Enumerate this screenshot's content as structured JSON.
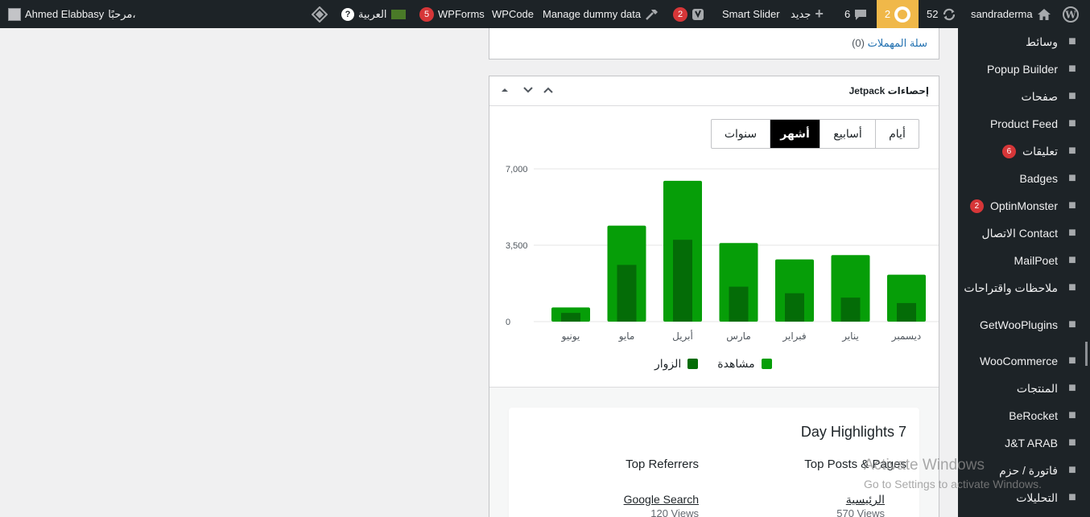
{
  "adminbar": {
    "wp_logo": "wordpress-icon",
    "site_name": "sandraderma",
    "updates_count": "52",
    "plugin_notice_count": "2",
    "comments_count": "6",
    "new_label": "جديد",
    "smart_slider": "Smart Slider",
    "yoast_count": "2",
    "manage_dummy": "Manage dummy data",
    "wpcode": "WPCode",
    "wpforms": "WPForms",
    "wpforms_count": "5",
    "language": "العربية",
    "greeting": "مرحبًا،",
    "user_name": "Ahmed Elabbasy"
  },
  "sidebar": {
    "items": [
      {
        "label": "وسائط",
        "icon": "media-icon"
      },
      {
        "label": "Popup Builder",
        "icon": "popup-icon"
      },
      {
        "label": "صفحات",
        "icon": "pages-icon"
      },
      {
        "label": "Product Feed",
        "icon": "cart-icon"
      },
      {
        "label": "تعليقات",
        "icon": "comment-icon",
        "badge": "6"
      },
      {
        "label": "Badges",
        "icon": "badge-icon"
      },
      {
        "label": "OptinMonster",
        "icon": "monster-icon",
        "badge": "2"
      },
      {
        "label": "الاتصال Contact",
        "icon": "mail-icon"
      },
      {
        "label": "MailPoet",
        "icon": "mailpoet-icon"
      },
      {
        "label": "ملاحظات واقتراحات",
        "icon": "feedback-icon"
      },
      {
        "label": "GetWooPlugins",
        "icon": "plugin-icon"
      },
      {
        "label": "WooCommerce",
        "icon": "woo-icon"
      },
      {
        "label": "المنتجات",
        "icon": "archive-icon"
      },
      {
        "label": "BeRocket",
        "icon": "rocket-icon"
      },
      {
        "label": "J&T ARAB",
        "icon": "jt-icon"
      },
      {
        "label": "فاتورة / حزم",
        "icon": "invoice-icon"
      },
      {
        "label": "التحليلات",
        "icon": "analytics-icon"
      }
    ]
  },
  "trash": {
    "link_label": "سلة المهملات",
    "count": "(0)"
  },
  "stats": {
    "title": "إحصاءات Jetpack",
    "tabs": [
      "أيام",
      "أسابيع",
      "أشهر",
      "سنوات"
    ],
    "active_tab": "أشهر"
  },
  "chart_data": {
    "type": "bar",
    "categories": [
      "ديسمبر",
      "يناير",
      "فبراير",
      "مارس",
      "أبريل",
      "مايو",
      "يونيو"
    ],
    "series": [
      {
        "name": "مشاهدة",
        "values": [
          2150,
          3050,
          2850,
          3600,
          6450,
          4400,
          650
        ],
        "color": "#069e08"
      },
      {
        "name": "الزوار",
        "values": [
          850,
          1100,
          1300,
          1600,
          3750,
          2600,
          400
        ],
        "color": "#046c07"
      }
    ],
    "y_ticks": [
      "0",
      "3,500",
      "7,000"
    ],
    "ylim": [
      0,
      7000
    ]
  },
  "legend": {
    "views": "مشاهدة",
    "visitors": "الزوار"
  },
  "highlights": {
    "title": "7 Day Highlights",
    "col_posts_title": "Top Posts & Pages",
    "col_referrers_title": "Top Referrers",
    "top_post_link": "الرئيسية",
    "top_post_views": "570 Views",
    "top_referrer_link": "Google Search",
    "top_referrer_views": "120 Views"
  },
  "watermark": {
    "line1": "Activate Windows",
    "line2": "Go to Settings to activate Windows."
  }
}
